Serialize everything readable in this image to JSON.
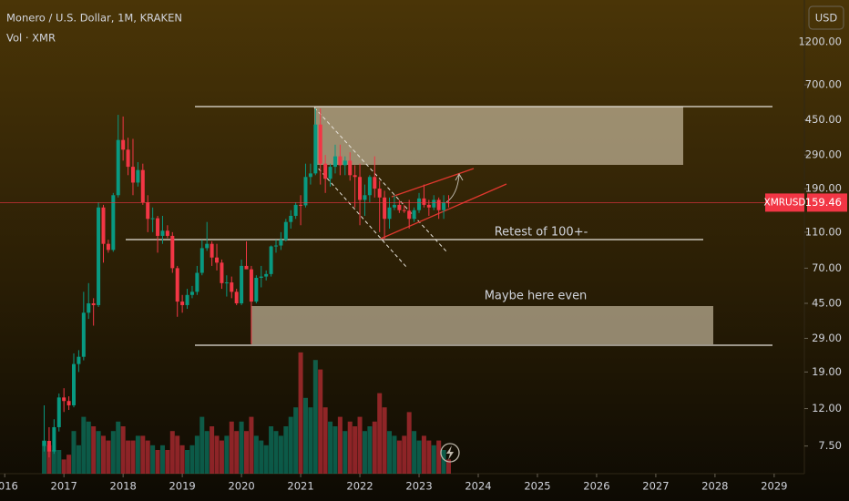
{
  "chart_data": {
    "type": "candlestick",
    "title": "Monero / U.S. Dollar, 1M, KRAKEN",
    "subtitle": "Vol · XMR",
    "currency": "USD",
    "symbol": "XMRUSD",
    "last_price": 159.46,
    "annotations": [
      "Retest of 100+-",
      "Maybe here even"
    ],
    "log_scale": true,
    "up_color": "#089981",
    "down_color": "#f23645",
    "ylim": [
      5.3,
      2030
    ],
    "yticks": [
      {
        "value": 1200,
        "label": "1200.00"
      },
      {
        "value": 700,
        "label": "700.00"
      },
      {
        "value": 450,
        "label": "450.00"
      },
      {
        "value": 290,
        "label": "290.00"
      },
      {
        "value": 190,
        "label": "190.00"
      },
      {
        "value": 110,
        "label": "110.00"
      },
      {
        "value": 70,
        "label": "70.00"
      },
      {
        "value": 45,
        "label": "45.00"
      },
      {
        "value": 29,
        "label": "29.00"
      },
      {
        "value": 19,
        "label": "19.00"
      },
      {
        "value": 12,
        "label": "12.00"
      },
      {
        "value": 7.5,
        "label": "7.50"
      }
    ],
    "xlim": [
      2015.92,
      2029.51
    ],
    "xticks": [
      2016,
      2017,
      2018,
      2019,
      2020,
      2021,
      2022,
      2023,
      2024,
      2025,
      2026,
      2027,
      2028,
      2029
    ],
    "volume_lim": [
      0,
      100
    ],
    "x": [
      "2016-09",
      "2016-10",
      "2016-11",
      "2016-12",
      "2017-01",
      "2017-02",
      "2017-03",
      "2017-04",
      "2017-05",
      "2017-06",
      "2017-07",
      "2017-08",
      "2017-09",
      "2017-10",
      "2017-11",
      "2017-12",
      "2018-01",
      "2018-02",
      "2018-03",
      "2018-04",
      "2018-05",
      "2018-06",
      "2018-07",
      "2018-08",
      "2018-09",
      "2018-10",
      "2018-11",
      "2018-12",
      "2019-01",
      "2019-02",
      "2019-03",
      "2019-04",
      "2019-05",
      "2019-06",
      "2019-07",
      "2019-08",
      "2019-09",
      "2019-10",
      "2019-11",
      "2019-12",
      "2020-01",
      "2020-02",
      "2020-03",
      "2020-04",
      "2020-05",
      "2020-06",
      "2020-07",
      "2020-08",
      "2020-09",
      "2020-10",
      "2020-11",
      "2020-12",
      "2021-01",
      "2021-02",
      "2021-03",
      "2021-04",
      "2021-05",
      "2021-06",
      "2021-07",
      "2021-08",
      "2021-09",
      "2021-10",
      "2021-11",
      "2021-12",
      "2022-01",
      "2022-02",
      "2022-03",
      "2022-04",
      "2022-05",
      "2022-06",
      "2022-07",
      "2022-08",
      "2022-09",
      "2022-10",
      "2022-11",
      "2022-12",
      "2023-01",
      "2023-02",
      "2023-03",
      "2023-04",
      "2023-05",
      "2023-06",
      "2023-07"
    ],
    "open": [
      7.5,
      8,
      7,
      9.5,
      13.8,
      13.2,
      12.5,
      21,
      23,
      40,
      45,
      44,
      150,
      95,
      88,
      175,
      350,
      310,
      250,
      205,
      240,
      160,
      130,
      131,
      105,
      112,
      105,
      70,
      46,
      44,
      50,
      52,
      66,
      90,
      95,
      80,
      75,
      58,
      58.5,
      52,
      45,
      72,
      69,
      46,
      62,
      63,
      65,
      92,
      93,
      100,
      125,
      135,
      155,
      154,
      220,
      230,
      425,
      260,
      215,
      250,
      285,
      255,
      270,
      225,
      220,
      165,
      175,
      220,
      190,
      170,
      130,
      150,
      155,
      145,
      144,
      130,
      145,
      168,
      155,
      150,
      165,
      145,
      160
    ],
    "high": [
      12.5,
      9.5,
      10.5,
      14.5,
      15.5,
      14,
      24,
      25,
      52,
      58,
      48,
      160,
      155,
      100,
      180,
      480,
      470,
      360,
      355,
      265,
      260,
      175,
      150,
      135,
      135,
      120,
      110,
      72,
      50,
      54,
      56,
      72,
      100,
      125,
      98,
      95,
      78,
      64,
      63,
      54,
      78,
      98,
      72,
      64,
      72,
      68,
      93,
      100,
      110,
      130,
      145,
      160,
      175,
      260,
      260,
      520,
      520,
      290,
      260,
      330,
      330,
      285,
      300,
      255,
      260,
      200,
      225,
      285,
      210,
      185,
      170,
      175,
      165,
      155,
      165,
      150,
      180,
      200,
      165,
      175,
      170,
      175,
      175
    ],
    "low": [
      7,
      6.5,
      6.8,
      9,
      11.5,
      11.8,
      12.2,
      19,
      22,
      37,
      34,
      43,
      75,
      85,
      86,
      170,
      270,
      225,
      175,
      195,
      155,
      110,
      110,
      85,
      95,
      102,
      66,
      38,
      40,
      42,
      48,
      50,
      64,
      87,
      72,
      68,
      54,
      49,
      48,
      44,
      44,
      70,
      27,
      45,
      55,
      60,
      63,
      85,
      88,
      98,
      115,
      130,
      120,
      150,
      200,
      225,
      200,
      180,
      195,
      230,
      225,
      225,
      210,
      150,
      120,
      135,
      160,
      170,
      110,
      100,
      115,
      145,
      140,
      140,
      115,
      125,
      140,
      150,
      135,
      145,
      130,
      130,
      150
    ],
    "close": [
      8,
      7,
      9.5,
      13.8,
      13.2,
      12.5,
      21,
      23,
      40,
      45,
      44,
      150,
      95,
      88,
      175,
      350,
      310,
      250,
      205,
      240,
      160,
      130,
      131,
      105,
      112,
      105,
      70,
      46,
      44,
      50,
      52,
      66,
      90,
      95,
      80,
      75,
      58,
      58.5,
      52,
      45,
      72,
      69,
      46,
      62,
      63,
      65,
      92,
      93,
      100,
      125,
      135,
      155,
      154,
      220,
      230,
      425,
      260,
      215,
      250,
      285,
      255,
      270,
      225,
      220,
      165,
      175,
      220,
      190,
      170,
      130,
      150,
      155,
      145,
      144,
      130,
      145,
      168,
      155,
      150,
      165,
      145,
      160,
      159.46
    ],
    "volume": [
      7,
      6,
      5,
      5,
      3,
      4,
      9,
      6,
      12,
      11,
      10,
      9,
      8,
      7,
      9,
      11,
      10,
      7,
      7,
      8,
      8,
      7,
      6,
      5,
      6,
      5,
      9,
      8,
      6,
      5,
      6,
      8,
      12,
      9,
      10,
      8,
      7,
      8,
      11,
      9,
      11,
      9,
      12,
      8,
      7,
      6,
      10,
      9,
      8,
      10,
      12,
      14,
      25.6,
      16,
      14,
      24,
      22,
      14,
      11,
      10,
      12,
      9,
      11,
      10,
      12,
      9,
      10,
      11,
      17,
      14,
      9,
      8,
      7,
      8,
      13,
      9,
      7,
      8,
      7,
      6,
      7,
      5,
      3
    ]
  }
}
